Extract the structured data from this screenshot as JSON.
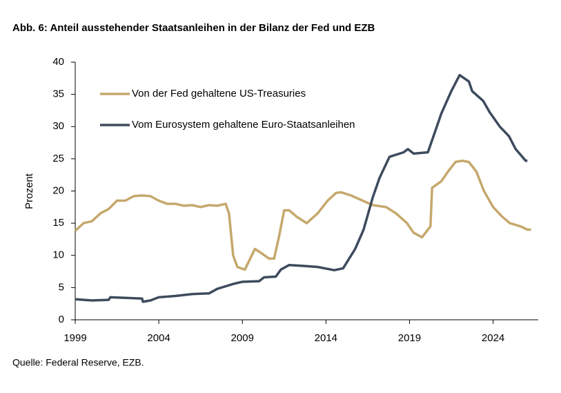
{
  "chart_data": {
    "type": "line",
    "title": "Abb. 6: Anteil ausstehender Staatsanleihen in der Bilanz der Fed und EZB",
    "y_label": "Prozent",
    "source": "Quelle: Federal Reserve, EZB.",
    "xlim": [
      1999,
      2026.7
    ],
    "xticks": [
      1999,
      2004,
      2009,
      2014,
      2019,
      2024
    ],
    "ylim": [
      0,
      40
    ],
    "yticks": [
      0,
      5,
      10,
      15,
      20,
      25,
      30,
      35,
      40
    ],
    "grid": false,
    "legend": "top-left",
    "series": [
      {
        "name": "Von der Fed gehaltene US-Treasuries",
        "color": "#c5a86c",
        "x": [
          1999,
          1999.5,
          2000,
          2000.5,
          2001,
          2001.5,
          2002,
          2002.5,
          2003,
          2003.5,
          2004,
          2004.5,
          2005,
          2005.5,
          2006,
          2006.5,
          2007,
          2007.5,
          2008,
          2008.2,
          2008.45,
          2008.7,
          2009.15,
          2009.75,
          2010.05,
          2010.6,
          2010.9,
          2011.2,
          2011.5,
          2011.8,
          2012.25,
          2012.85,
          2013.5,
          2014.1,
          2014.6,
          2014.9,
          2015.5,
          2016.2,
          2016.8,
          2017.6,
          2018.2,
          2018.85,
          2019.25,
          2019.75,
          2020.1,
          2020.25,
          2020.35,
          2020.9,
          2021.3,
          2021.75,
          2022.15,
          2022.55,
          2023,
          2023.45,
          2024,
          2024.55,
          2025,
          2025.65,
          2026.05,
          2026.27
        ],
        "values": [
          13.8,
          15,
          15.3,
          16.5,
          17.2,
          18.5,
          18.5,
          19.2,
          19.3,
          19.2,
          18.5,
          18,
          18,
          17.7,
          17.8,
          17.5,
          17.8,
          17.7,
          18,
          16.5,
          10,
          8.2,
          7.8,
          11,
          10.5,
          9.5,
          9.5,
          13,
          17,
          17,
          16,
          15,
          16.5,
          18.5,
          19.7,
          19.8,
          19.3,
          18.5,
          17.8,
          17.5,
          16.5,
          15,
          13.5,
          12.8,
          14,
          14.5,
          20.5,
          21.5,
          23,
          24.5,
          24.7,
          24.5,
          23,
          20,
          17.5,
          16,
          15,
          14.5,
          14,
          14
        ]
      },
      {
        "name": "Vom Eurosystem gehaltene Euro-Staatsanleihen",
        "color": "#3e4a5d",
        "x": [
          1999,
          2000,
          2001,
          2001.1,
          2002,
          2003,
          2003.05,
          2003.5,
          2004,
          2005,
          2006,
          2007,
          2007.5,
          2008,
          2008.5,
          2009,
          2010,
          2010.3,
          2011,
          2011.3,
          2011.8,
          2012.5,
          2013.5,
          2014.5,
          2015.03,
          2015.75,
          2016.25,
          2016.8,
          2017.2,
          2017.8,
          2018.65,
          2018.9,
          2019.25,
          2020.1,
          2020.5,
          2020.9,
          2021.5,
          2022,
          2022.55,
          2022.75,
          2023.4,
          2023.8,
          2024.4,
          2024.95,
          2025.35,
          2025.95,
          2026.05
        ],
        "values": [
          3.2,
          3.0,
          3.1,
          3.5,
          3.4,
          3.3,
          2.8,
          3.0,
          3.5,
          3.7,
          4.0,
          4.1,
          4.8,
          5.2,
          5.6,
          5.9,
          6.0,
          6.6,
          6.7,
          7.8,
          8.5,
          8.4,
          8.2,
          7.7,
          8,
          11,
          14,
          19,
          22,
          25.3,
          26,
          26.5,
          25.8,
          26,
          29,
          32,
          35.5,
          38,
          37,
          35.5,
          34,
          32.2,
          30,
          28.5,
          26.5,
          24.7,
          24.7
        ]
      }
    ]
  }
}
